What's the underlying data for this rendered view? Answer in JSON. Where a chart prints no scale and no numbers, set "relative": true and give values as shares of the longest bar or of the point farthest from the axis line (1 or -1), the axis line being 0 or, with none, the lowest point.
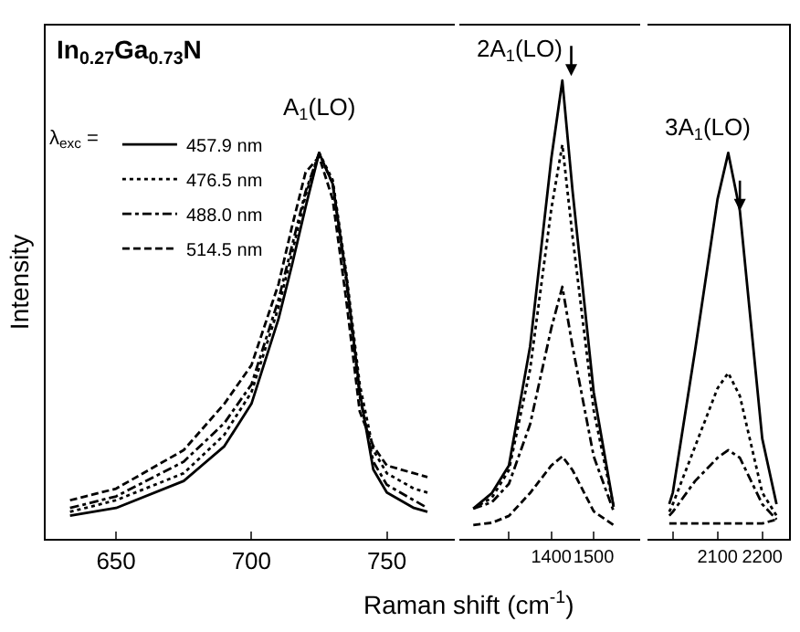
{
  "chart_data": [
    {
      "type": "line",
      "title": "In$_{0.27}$Ga$_{0.73}$N",
      "xlabel": "Raman shift (cm$^{-1}$)",
      "ylabel": "Intensity",
      "legend_title": "λ$_{exc}$ =",
      "legend": "top left",
      "relative": true,
      "x": [
        633,
        650,
        675,
        690,
        700,
        710,
        715,
        720,
        725,
        730,
        735,
        740,
        745,
        750,
        760,
        765
      ],
      "xlim": [
        624,
        775
      ],
      "xticks": [
        650,
        700,
        750
      ],
      "annotations": [
        "A$_{1}$(LO)"
      ],
      "series": [
        {
          "name": "457.9 nm",
          "color": "#000000",
          "line_style": "solid",
          "values": [
            0.06,
            0.08,
            0.15,
            0.24,
            0.35,
            0.57,
            0.71,
            0.86,
            1.0,
            0.92,
            0.68,
            0.38,
            0.18,
            0.12,
            0.08,
            0.07
          ]
        },
        {
          "name": "476.5 nm",
          "color": "#000000",
          "line_style": "dotted",
          "values": [
            0.07,
            0.1,
            0.17,
            0.27,
            0.38,
            0.6,
            0.74,
            0.89,
            1.0,
            0.93,
            0.69,
            0.4,
            0.23,
            0.17,
            0.13,
            0.12
          ]
        },
        {
          "name": "488.0 nm",
          "color": "#000000",
          "line_style": "dashdot",
          "values": [
            0.08,
            0.11,
            0.2,
            0.3,
            0.4,
            0.62,
            0.76,
            0.9,
            1.0,
            0.92,
            0.67,
            0.37,
            0.2,
            0.14,
            0.1,
            0.08
          ]
        },
        {
          "name": "514.5 nm",
          "color": "#000000",
          "line_style": "dashed",
          "values": [
            0.1,
            0.13,
            0.23,
            0.35,
            0.45,
            0.66,
            0.81,
            0.95,
            0.99,
            0.88,
            0.62,
            0.33,
            0.24,
            0.19,
            0.17,
            0.16
          ]
        }
      ]
    },
    {
      "type": "line",
      "relative": true,
      "x": [
        1216,
        1260,
        1300,
        1350,
        1400,
        1426,
        1450,
        1500,
        1547
      ],
      "xlim": [
        1184,
        1610
      ],
      "xticks": [
        {
          "value": 1300,
          "label": null
        },
        1400,
        1500
      ],
      "annotations": [
        {
          "text": "2A$_{1}$(LO)",
          "x": 1447,
          "y": 1.01
        }
      ],
      "series": [
        {
          "color": "#000000",
          "line_style": "solid",
          "values": [
            0.066,
            0.1,
            0.16,
            0.42,
            0.83,
            1.0,
            0.76,
            0.32,
            0.07
          ]
        },
        {
          "color": "#000000",
          "line_style": "dotted",
          "values": [
            0.066,
            0.09,
            0.15,
            0.37,
            0.72,
            0.86,
            0.66,
            0.28,
            0.07
          ]
        },
        {
          "color": "#000000",
          "line_style": "dashdot",
          "values": [
            0.066,
            0.08,
            0.12,
            0.25,
            0.46,
            0.55,
            0.42,
            0.18,
            0.06
          ]
        },
        {
          "color": "#000000",
          "line_style": "dashed",
          "values": [
            0.03,
            0.035,
            0.05,
            0.1,
            0.16,
            0.18,
            0.15,
            0.06,
            0.03
          ]
        }
      ]
    },
    {
      "type": "line",
      "relative": true,
      "x": [
        1992,
        2000,
        2050,
        2100,
        2124,
        2150,
        2200,
        2232
      ],
      "xlim": [
        1944,
        2260
      ],
      "xticks": [
        {
          "value": 2000,
          "label": null
        },
        2100,
        2200
      ],
      "annotations": [
        {
          "text": "3A$_{1}$(LO)",
          "x": 2150,
          "y": 0.85
        }
      ],
      "series": [
        {
          "color": "#000000",
          "line_style": "solid",
          "values": [
            0.09,
            0.12,
            0.49,
            0.88,
            1.0,
            0.85,
            0.26,
            0.09
          ]
        },
        {
          "color": "#000000",
          "line_style": "dotted",
          "values": [
            0.07,
            0.09,
            0.24,
            0.39,
            0.43,
            0.37,
            0.12,
            0.06
          ]
        },
        {
          "color": "#000000",
          "line_style": "dashdot",
          "values": [
            0.06,
            0.07,
            0.15,
            0.21,
            0.23,
            0.21,
            0.09,
            0.05
          ]
        },
        {
          "color": "#000000",
          "line_style": "dashed",
          "values": [
            0.04,
            0.04,
            0.04,
            0.04,
            0.04,
            0.04,
            0.04,
            0.05
          ]
        }
      ]
    }
  ]
}
